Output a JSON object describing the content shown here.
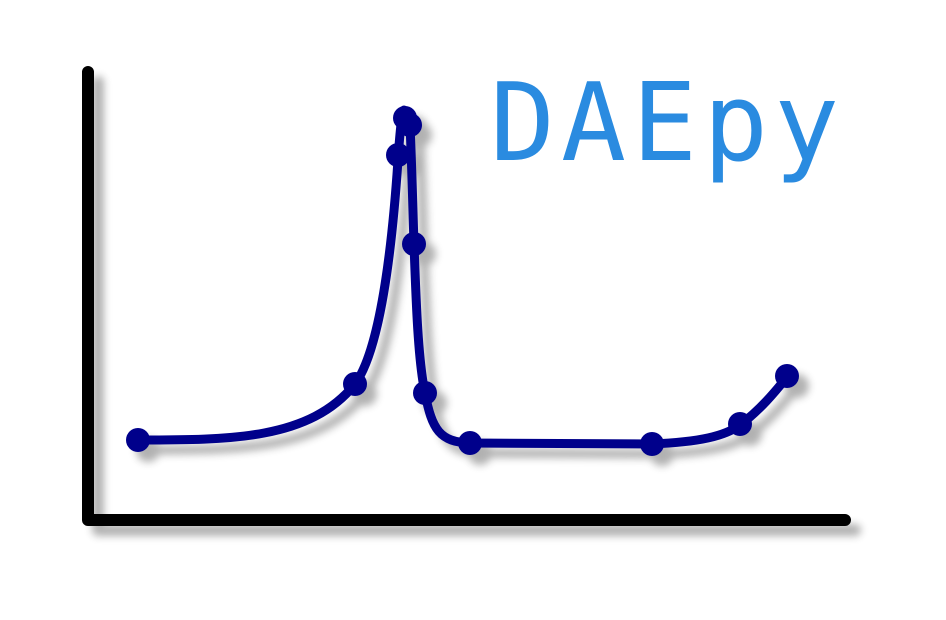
{
  "logo": {
    "text": "DAEpy",
    "colors": {
      "text": "#2a8be0",
      "curve": "#00008b",
      "axes": "#000000",
      "shadow": "#999999"
    },
    "icons": [
      "axes-icon",
      "curve-icon",
      "data-point-icon"
    ]
  }
}
